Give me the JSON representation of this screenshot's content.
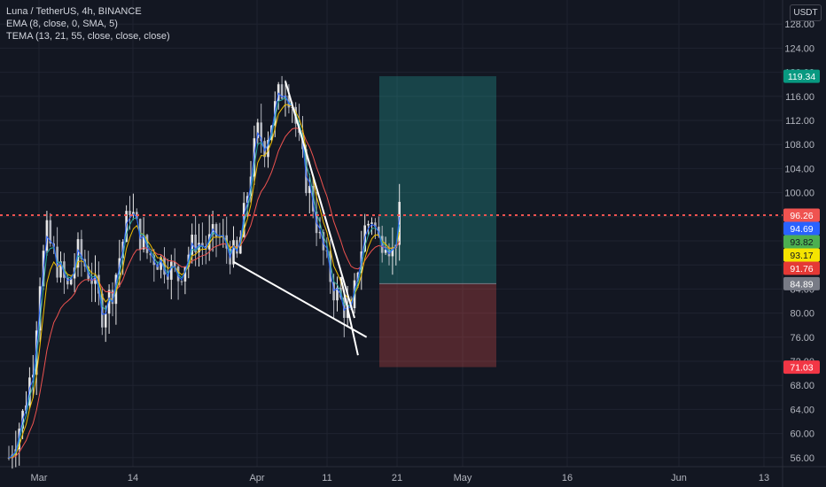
{
  "legend": {
    "line1": "Luna / TetherUS, 4h, BINANCE",
    "line2": "EMA (8, close, 0, SMA, 5)",
    "line3": "TEMA (13, 21, 55, close, close, close)"
  },
  "currency": "USDT",
  "colors": {
    "background": "#131722",
    "grid": "#1f2330",
    "up": "#26a69a",
    "down": "#ef5350",
    "candle_up": "#e6e6e6",
    "candle_down": "#b2b5be",
    "ema": "#f0c000",
    "tema_fast": "#2962ff",
    "tema_mid": "#26a69a",
    "tema_slow": "#ef5350",
    "trendline": "#ffffff",
    "last_price": "#ef5350"
  },
  "chart_data": {
    "type": "candlestick",
    "ylim": [
      54.5,
      132
    ],
    "y_ticks": [
      56,
      60,
      64,
      68,
      72,
      76,
      80,
      84,
      88,
      92,
      96,
      100,
      104,
      108,
      112,
      116,
      120,
      124,
      128
    ],
    "x_ticks": [
      "Mar",
      "14",
      "Apr",
      "11",
      "21",
      "May",
      "16",
      "Jun",
      "13"
    ],
    "last_price_line": 96.26,
    "price_labels": [
      {
        "value": 119.34,
        "label": "119.34",
        "color": "#089981"
      },
      {
        "value": 96.26,
        "label": "96.26",
        "color": "#ef5350"
      },
      {
        "value": 94.69,
        "label": "94.69",
        "color": "#2962ff"
      },
      {
        "value": 93.82,
        "label": "93.82",
        "color": "#4caf50"
      },
      {
        "value": 93.17,
        "label": "93.17",
        "color": "#f5e400"
      },
      {
        "value": 91.76,
        "label": "91.76",
        "color": "#e53935"
      },
      {
        "value": 84.89,
        "label": "84.89",
        "color": "#787b86"
      },
      {
        "value": 71.03,
        "label": "71.03",
        "color": "#f23645"
      }
    ],
    "position": {
      "entry": 84.89,
      "target": 119.34,
      "stop": 71.03
    },
    "price_path": [
      [
        0,
        56
      ],
      [
        4,
        63
      ],
      [
        7,
        72
      ],
      [
        9,
        86
      ],
      [
        11,
        93
      ],
      [
        14,
        88
      ],
      [
        17,
        84
      ],
      [
        20,
        90
      ],
      [
        24,
        86
      ],
      [
        27,
        80
      ],
      [
        30,
        84
      ],
      [
        33,
        92
      ],
      [
        35,
        98
      ],
      [
        37,
        94
      ],
      [
        40,
        90
      ],
      [
        43,
        89
      ],
      [
        46,
        88
      ],
      [
        49,
        86
      ],
      [
        52,
        90
      ],
      [
        54,
        92
      ],
      [
        57,
        91
      ],
      [
        60,
        93
      ],
      [
        63,
        91
      ],
      [
        66,
        89
      ],
      [
        68,
        96
      ],
      [
        70,
        104
      ],
      [
        72,
        110
      ],
      [
        74,
        108
      ],
      [
        76,
        112
      ],
      [
        78,
        116
      ],
      [
        80,
        118
      ],
      [
        82,
        115
      ],
      [
        84,
        108
      ],
      [
        86,
        102
      ],
      [
        88,
        98
      ],
      [
        90,
        92
      ],
      [
        92,
        88
      ],
      [
        94,
        84
      ],
      [
        96,
        82
      ],
      [
        98,
        80
      ],
      [
        99,
        79
      ],
      [
        101,
        88
      ],
      [
        103,
        94
      ],
      [
        105,
        96
      ],
      [
        107,
        92
      ],
      [
        109,
        93
      ],
      [
        111,
        90
      ],
      [
        113,
        96
      ]
    ],
    "trendlines": [
      {
        "from": [
          80,
          118.5
        ],
        "to": [
          100,
          79.2
        ]
      },
      {
        "from": [
          65,
          88.5
        ],
        "to": [
          103.5,
          76
        ]
      },
      {
        "from": [
          96,
          86
        ],
        "to": [
          101,
          73
        ]
      }
    ]
  }
}
